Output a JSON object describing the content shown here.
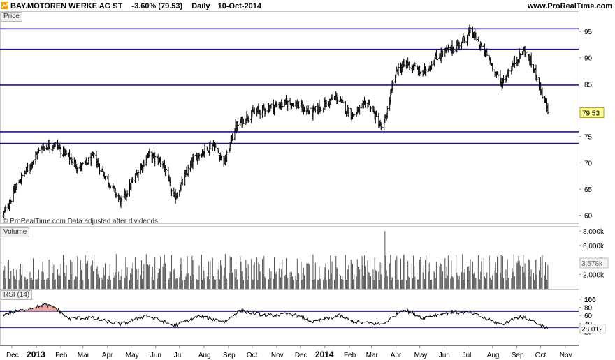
{
  "header": {
    "title": "BAY.MOTOREN WERKE AG ST",
    "change": "-3.60% (79.53)",
    "interval": "Daily",
    "date": "10-Oct-2014",
    "site": "www.ProRealTime.com"
  },
  "colors": {
    "hline": "#1a1a8c",
    "rsi_band": "#1a1a8c",
    "price_bar": "#000000",
    "last_price_bg": "#ffff99",
    "rsi_overbought_fill": "#e8a0a0"
  },
  "chart_data": [
    {
      "type": "ohlc",
      "pane": "price",
      "label": "Price",
      "watermark": "© ProRealTime.com  Data adjusted after dividends",
      "ylim": [
        58.5,
        97
      ],
      "yticks": [
        60,
        65,
        70,
        75,
        80,
        85,
        90,
        95
      ],
      "last_price": "79.53",
      "horizontal_lines": [
        95.5,
        91.6,
        84.8,
        75.9,
        73.7
      ],
      "keypoints": [
        {
          "date": "2012-11-20",
          "close": 60.0
        },
        {
          "date": "2012-12-10",
          "close": 66.5
        },
        {
          "date": "2013-01-08",
          "close": 73.0
        },
        {
          "date": "2013-01-25",
          "close": 73.5
        },
        {
          "date": "2013-02-25",
          "close": 69.0
        },
        {
          "date": "2013-03-15",
          "close": 71.0
        },
        {
          "date": "2013-04-18",
          "close": 62.5
        },
        {
          "date": "2013-05-05",
          "close": 67.0
        },
        {
          "date": "2013-05-22",
          "close": 71.5
        },
        {
          "date": "2013-06-10",
          "close": 70.0
        },
        {
          "date": "2013-06-24",
          "close": 63.0
        },
        {
          "date": "2013-07-20",
          "close": 71.0
        },
        {
          "date": "2013-08-12",
          "close": 73.5
        },
        {
          "date": "2013-08-28",
          "close": 70.0
        },
        {
          "date": "2013-09-08",
          "close": 76.5
        },
        {
          "date": "2013-09-25",
          "close": 79.0
        },
        {
          "date": "2013-10-20",
          "close": 80.5
        },
        {
          "date": "2013-11-20",
          "close": 81.5
        },
        {
          "date": "2013-12-15",
          "close": 79.5
        },
        {
          "date": "2014-01-15",
          "close": 82.5
        },
        {
          "date": "2014-02-05",
          "close": 79.0
        },
        {
          "date": "2014-02-25",
          "close": 81.5
        },
        {
          "date": "2014-03-15",
          "close": 76.0
        },
        {
          "date": "2014-04-01",
          "close": 87.5
        },
        {
          "date": "2014-04-15",
          "close": 89.0
        },
        {
          "date": "2014-05-05",
          "close": 87.0
        },
        {
          "date": "2014-05-25",
          "close": 90.5
        },
        {
          "date": "2014-06-15",
          "close": 92.0
        },
        {
          "date": "2014-07-05",
          "close": 95.0
        },
        {
          "date": "2014-07-25",
          "close": 90.5
        },
        {
          "date": "2014-08-12",
          "close": 85.0
        },
        {
          "date": "2014-08-28",
          "close": 89.0
        },
        {
          "date": "2014-09-10",
          "close": 91.5
        },
        {
          "date": "2014-09-25",
          "close": 87.0
        },
        {
          "date": "2014-10-10",
          "close": 79.53
        }
      ]
    },
    {
      "type": "bar",
      "pane": "volume",
      "label": "Volume",
      "ylim": [
        0,
        8500000
      ],
      "yticks": [
        "8,000k",
        "6,000k",
        "4,000k",
        "2,000k"
      ],
      "ytick_values": [
        8000000,
        6000000,
        4000000,
        2000000
      ],
      "last_value": "3,578k",
      "typical_range": [
        1200000,
        4500000
      ],
      "spike": {
        "date": "2014-03-18",
        "value": 8000000
      }
    },
    {
      "type": "line",
      "pane": "rsi",
      "label": "RSI (14)",
      "ylim": [
        0,
        100
      ],
      "yticks": [
        100,
        80,
        60,
        40,
        20
      ],
      "bands": [
        70,
        30
      ],
      "last_value": "28.012",
      "keypoints": [
        {
          "date": "2012-11-20",
          "value": 62
        },
        {
          "date": "2012-12-20",
          "value": 76
        },
        {
          "date": "2013-01-10",
          "value": 86
        },
        {
          "date": "2013-01-25",
          "value": 80
        },
        {
          "date": "2013-02-10",
          "value": 52
        },
        {
          "date": "2013-03-10",
          "value": 55
        },
        {
          "date": "2013-04-18",
          "value": 38
        },
        {
          "date": "2013-05-20",
          "value": 60
        },
        {
          "date": "2013-06-24",
          "value": 35
        },
        {
          "date": "2013-07-25",
          "value": 58
        },
        {
          "date": "2013-08-28",
          "value": 45
        },
        {
          "date": "2013-09-15",
          "value": 72
        },
        {
          "date": "2013-10-20",
          "value": 60
        },
        {
          "date": "2013-11-20",
          "value": 64
        },
        {
          "date": "2013-12-18",
          "value": 44
        },
        {
          "date": "2014-01-20",
          "value": 60
        },
        {
          "date": "2014-02-05",
          "value": 45
        },
        {
          "date": "2014-03-15",
          "value": 38
        },
        {
          "date": "2014-04-10",
          "value": 75
        },
        {
          "date": "2014-05-05",
          "value": 55
        },
        {
          "date": "2014-06-10",
          "value": 68
        },
        {
          "date": "2014-07-05",
          "value": 66
        },
        {
          "date": "2014-08-12",
          "value": 38
        },
        {
          "date": "2014-09-05",
          "value": 58
        },
        {
          "date": "2014-09-20",
          "value": 48
        },
        {
          "date": "2014-10-10",
          "value": 28
        }
      ]
    }
  ],
  "xaxis": {
    "labels": [
      {
        "date": "2012-12-01",
        "text": "Dec",
        "bold": false
      },
      {
        "date": "2013-01-01",
        "text": "2013",
        "bold": true
      },
      {
        "date": "2013-02-01",
        "text": "Feb",
        "bold": false
      },
      {
        "date": "2013-03-01",
        "text": "Mar",
        "bold": false
      },
      {
        "date": "2013-04-01",
        "text": "Apr",
        "bold": false
      },
      {
        "date": "2013-05-01",
        "text": "May",
        "bold": false
      },
      {
        "date": "2013-06-01",
        "text": "Jun",
        "bold": false
      },
      {
        "date": "2013-07-01",
        "text": "Jul",
        "bold": false
      },
      {
        "date": "2013-08-01",
        "text": "Aug",
        "bold": false
      },
      {
        "date": "2013-09-01",
        "text": "Sep",
        "bold": false
      },
      {
        "date": "2013-10-01",
        "text": "Oct",
        "bold": false
      },
      {
        "date": "2013-11-01",
        "text": "Nov",
        "bold": false
      },
      {
        "date": "2013-12-01",
        "text": "Dec",
        "bold": false
      },
      {
        "date": "2014-01-01",
        "text": "2014",
        "bold": true
      },
      {
        "date": "2014-02-01",
        "text": "Feb",
        "bold": false
      },
      {
        "date": "2014-03-01",
        "text": "Mar",
        "bold": false
      },
      {
        "date": "2014-04-01",
        "text": "Apr",
        "bold": false
      },
      {
        "date": "2014-05-01",
        "text": "May",
        "bold": false
      },
      {
        "date": "2014-06-01",
        "text": "Jun",
        "bold": false
      },
      {
        "date": "2014-07-01",
        "text": "Jul",
        "bold": false
      },
      {
        "date": "2014-08-01",
        "text": "Aug",
        "bold": false
      },
      {
        "date": "2014-09-01",
        "text": "Sep",
        "bold": false
      },
      {
        "date": "2014-10-01",
        "text": "Oct",
        "bold": false
      },
      {
        "date": "2014-11-01",
        "text": "Nov",
        "bold": false
      }
    ],
    "start": "2012-11-16",
    "end": "2014-11-18"
  }
}
